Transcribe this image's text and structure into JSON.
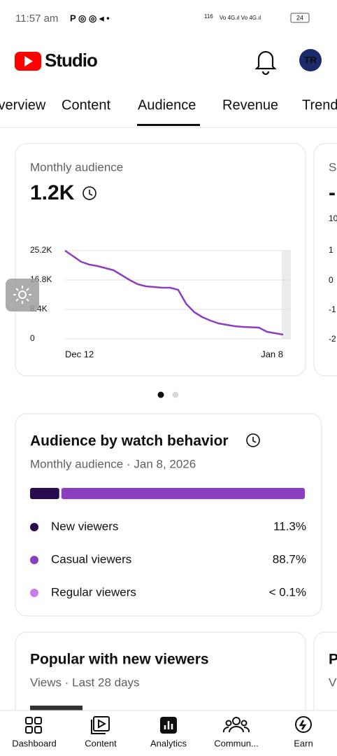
{
  "status_bar": {
    "time": "11:57 am",
    "speed": "116",
    "battery": "24"
  },
  "header": {
    "app_name": "Studio"
  },
  "tabs": [
    "Overview",
    "Content",
    "Audience",
    "Revenue",
    "Trends"
  ],
  "audience_card": {
    "title": "Monthly audience",
    "value": "1.2K",
    "chart": {
      "type": "line",
      "color": "#8b3fc0",
      "categories": [
        "Dec 12",
        null,
        null,
        null,
        null,
        null,
        null,
        null,
        null,
        null,
        null,
        null,
        null,
        null,
        null,
        null,
        null,
        null,
        null,
        null,
        null,
        null,
        null,
        null,
        null,
        null,
        null,
        "Jan 8"
      ],
      "values": [
        25200,
        23600,
        22000,
        21200,
        20800,
        20200,
        19600,
        18200,
        16800,
        15600,
        15000,
        14800,
        14600,
        14600,
        14000,
        10000,
        7600,
        6200,
        5200,
        4400,
        4000,
        3600,
        3400,
        3300,
        3200,
        2000,
        1600,
        1200
      ],
      "ylim": [
        0,
        25200
      ],
      "yticks": [
        0,
        {
          "value": 8400,
          "label": "8.4K"
        },
        {
          "value": 16800,
          "label": "16.8K"
        },
        {
          "value": 25200,
          "label": "25.2K"
        }
      ],
      "grid": true
    }
  },
  "peek_card": {
    "title": "S",
    "value": "-",
    "labels": [
      "10",
      "1",
      "0",
      "-1",
      "-2"
    ]
  },
  "watch_card": {
    "title": "Audience by watch behavior",
    "subtitle": "Monthly audience · Jan 8, 2026",
    "chart": {
      "type": "stacked-bar",
      "series": [
        {
          "name": "New viewers",
          "color": "#2b0b4f",
          "values": [
            11.3
          ],
          "value_labels": [
            "11.3%"
          ]
        },
        {
          "name": "Casual viewers",
          "color": "#8b3fc0",
          "values": [
            88.7
          ],
          "value_labels": [
            "88.7%"
          ]
        },
        {
          "name": "Regular viewers",
          "color": "#c77ded",
          "values": [
            0.1
          ],
          "value_labels": [
            "< 0.1%"
          ]
        }
      ]
    }
  },
  "popular_card": {
    "title": "Popular with new viewers",
    "subtitle": "Views · Last 28 days"
  },
  "peek_card_2": {
    "title": "P",
    "subtitle": "V"
  },
  "bottom_nav": [
    "Dashboard",
    "Content",
    "Analytics",
    "Commun...",
    "Earn"
  ]
}
